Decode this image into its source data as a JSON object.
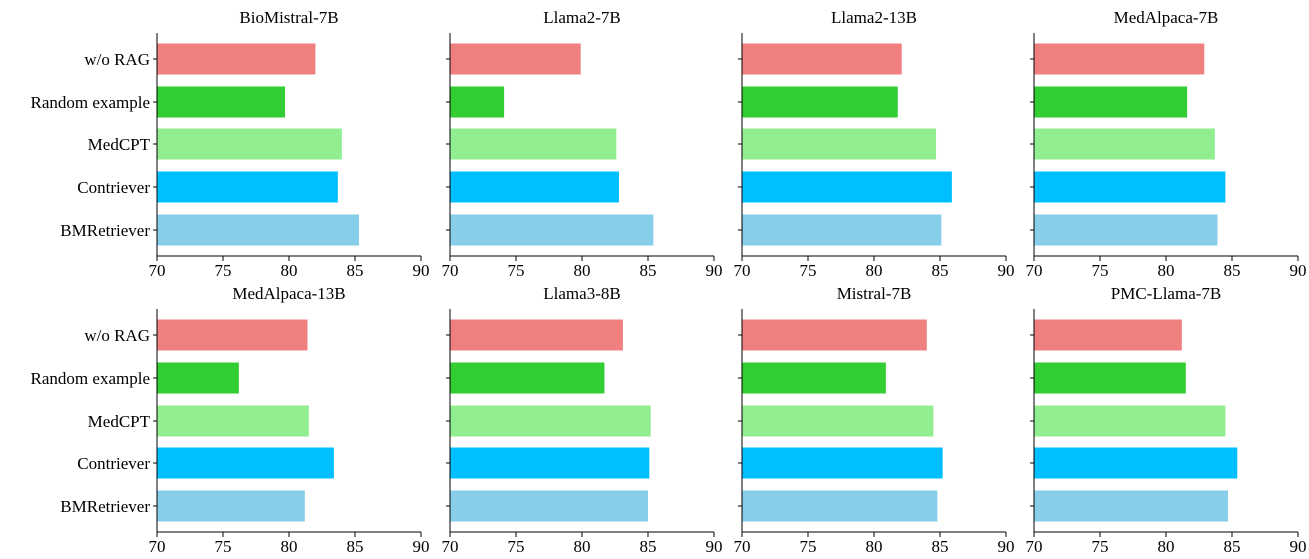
{
  "chart_data": {
    "type": "bar",
    "orientation": "horizontal",
    "layout": "2x4 small multiples",
    "categories": [
      "w/o RAG",
      "Random example",
      "MedCPT",
      "Contriever",
      "BMRetriever"
    ],
    "colors": {
      "w/o RAG": "#F08080",
      "Random example": "#32CD32",
      "MedCPT": "#90EE90",
      "Contriever": "#00BFFF",
      "BMRetriever": "#87CEEB"
    },
    "xlim": [
      70,
      90
    ],
    "xticks": [
      70,
      75,
      80,
      85,
      90
    ],
    "grid": false,
    "panels": [
      {
        "title": "BioMistral-7B",
        "values": [
          82.0,
          79.7,
          84.0,
          83.7,
          85.3
        ]
      },
      {
        "title": "Llama2-7B",
        "values": [
          79.9,
          74.1,
          82.6,
          82.8,
          85.4
        ]
      },
      {
        "title": "Llama2-13B",
        "values": [
          82.1,
          81.8,
          84.7,
          85.9,
          85.1
        ]
      },
      {
        "title": "MedAlpaca-7B",
        "values": [
          82.9,
          81.6,
          83.7,
          84.5,
          83.9
        ]
      },
      {
        "title": "MedAlpaca-13B",
        "values": [
          81.4,
          76.2,
          81.5,
          83.4,
          81.2
        ]
      },
      {
        "title": "Llama3-8B",
        "values": [
          83.1,
          81.7,
          85.2,
          85.1,
          85.0
        ]
      },
      {
        "title": "Mistral-7B",
        "values": [
          84.0,
          80.9,
          84.5,
          85.2,
          84.8
        ]
      },
      {
        "title": "PMC-Llama-7B",
        "values": [
          81.2,
          81.5,
          84.5,
          85.4,
          84.7
        ]
      }
    ]
  }
}
